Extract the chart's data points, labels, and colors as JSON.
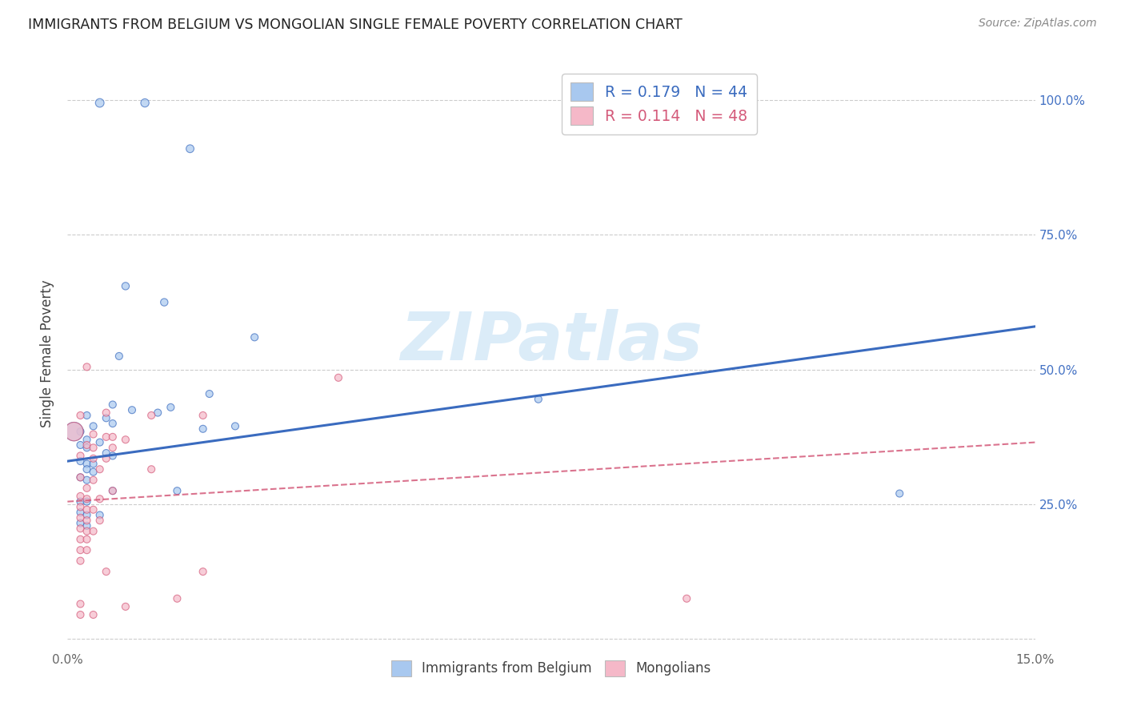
{
  "title": "IMMIGRANTS FROM BELGIUM VS MONGOLIAN SINGLE FEMALE POVERTY CORRELATION CHART",
  "source": "Source: ZipAtlas.com",
  "ylabel": "Single Female Poverty",
  "xlim": [
    0.0,
    0.15
  ],
  "ylim": [
    -0.02,
    1.08
  ],
  "legend_r_values": [
    "0.179",
    "0.114"
  ],
  "legend_n_values": [
    "44",
    "48"
  ],
  "watermark": "ZIPatlas",
  "blue_color": "#a8c8ef",
  "pink_color": "#f5b8c8",
  "blue_line_color": "#3a6bbf",
  "pink_line_color": "#d45a7a",
  "blue_trend_x": [
    0.0,
    0.15
  ],
  "blue_trend_y": [
    0.33,
    0.58
  ],
  "pink_trend_x": [
    0.0,
    0.15
  ],
  "pink_trend_y": [
    0.255,
    0.365
  ],
  "belgium_points": [
    [
      0.005,
      0.995
    ],
    [
      0.012,
      0.995
    ],
    [
      0.019,
      0.91
    ],
    [
      0.009,
      0.655
    ],
    [
      0.015,
      0.625
    ],
    [
      0.008,
      0.525
    ],
    [
      0.022,
      0.455
    ],
    [
      0.029,
      0.56
    ],
    [
      0.007,
      0.435
    ],
    [
      0.01,
      0.425
    ],
    [
      0.016,
      0.43
    ],
    [
      0.003,
      0.415
    ],
    [
      0.014,
      0.42
    ],
    [
      0.006,
      0.41
    ],
    [
      0.007,
      0.4
    ],
    [
      0.004,
      0.395
    ],
    [
      0.026,
      0.395
    ],
    [
      0.021,
      0.39
    ],
    [
      0.002,
      0.385
    ],
    [
      0.003,
      0.37
    ],
    [
      0.005,
      0.365
    ],
    [
      0.002,
      0.36
    ],
    [
      0.003,
      0.355
    ],
    [
      0.006,
      0.345
    ],
    [
      0.007,
      0.34
    ],
    [
      0.002,
      0.33
    ],
    [
      0.003,
      0.325
    ],
    [
      0.004,
      0.325
    ],
    [
      0.003,
      0.315
    ],
    [
      0.004,
      0.31
    ],
    [
      0.002,
      0.3
    ],
    [
      0.003,
      0.295
    ],
    [
      0.007,
      0.275
    ],
    [
      0.017,
      0.275
    ],
    [
      0.002,
      0.255
    ],
    [
      0.003,
      0.255
    ],
    [
      0.002,
      0.235
    ],
    [
      0.003,
      0.23
    ],
    [
      0.005,
      0.23
    ],
    [
      0.002,
      0.215
    ],
    [
      0.003,
      0.21
    ],
    [
      0.001,
      0.385
    ],
    [
      0.073,
      0.445
    ],
    [
      0.129,
      0.27
    ]
  ],
  "belgium_sizes": [
    60,
    55,
    50,
    45,
    45,
    42,
    42,
    42,
    42,
    42,
    42,
    42,
    42,
    42,
    42,
    42,
    42,
    42,
    42,
    42,
    42,
    42,
    42,
    42,
    42,
    42,
    42,
    42,
    42,
    42,
    42,
    42,
    42,
    42,
    42,
    42,
    42,
    42,
    42,
    42,
    42,
    280,
    42,
    42
  ],
  "mongolian_points": [
    [
      0.003,
      0.505
    ],
    [
      0.042,
      0.485
    ],
    [
      0.002,
      0.415
    ],
    [
      0.006,
      0.42
    ],
    [
      0.013,
      0.415
    ],
    [
      0.021,
      0.415
    ],
    [
      0.004,
      0.38
    ],
    [
      0.006,
      0.375
    ],
    [
      0.009,
      0.37
    ],
    [
      0.003,
      0.36
    ],
    [
      0.004,
      0.355
    ],
    [
      0.007,
      0.355
    ],
    [
      0.002,
      0.34
    ],
    [
      0.004,
      0.335
    ],
    [
      0.006,
      0.335
    ],
    [
      0.005,
      0.315
    ],
    [
      0.013,
      0.315
    ],
    [
      0.002,
      0.3
    ],
    [
      0.004,
      0.295
    ],
    [
      0.003,
      0.28
    ],
    [
      0.007,
      0.275
    ],
    [
      0.002,
      0.265
    ],
    [
      0.003,
      0.26
    ],
    [
      0.005,
      0.26
    ],
    [
      0.002,
      0.245
    ],
    [
      0.003,
      0.24
    ],
    [
      0.004,
      0.24
    ],
    [
      0.002,
      0.225
    ],
    [
      0.003,
      0.22
    ],
    [
      0.005,
      0.22
    ],
    [
      0.002,
      0.205
    ],
    [
      0.003,
      0.2
    ],
    [
      0.004,
      0.2
    ],
    [
      0.002,
      0.185
    ],
    [
      0.003,
      0.185
    ],
    [
      0.002,
      0.165
    ],
    [
      0.003,
      0.165
    ],
    [
      0.002,
      0.145
    ],
    [
      0.006,
      0.125
    ],
    [
      0.021,
      0.125
    ],
    [
      0.017,
      0.075
    ],
    [
      0.002,
      0.065
    ],
    [
      0.009,
      0.06
    ],
    [
      0.002,
      0.045
    ],
    [
      0.004,
      0.045
    ],
    [
      0.001,
      0.385
    ],
    [
      0.007,
      0.375
    ],
    [
      0.096,
      0.075
    ]
  ],
  "mongolian_sizes": [
    42,
    42,
    42,
    42,
    42,
    42,
    42,
    42,
    42,
    42,
    42,
    42,
    42,
    42,
    42,
    42,
    42,
    42,
    42,
    42,
    42,
    42,
    42,
    42,
    42,
    42,
    42,
    42,
    42,
    42,
    42,
    42,
    42,
    42,
    42,
    42,
    42,
    42,
    42,
    42,
    42,
    42,
    42,
    42,
    42,
    280,
    42,
    42
  ]
}
